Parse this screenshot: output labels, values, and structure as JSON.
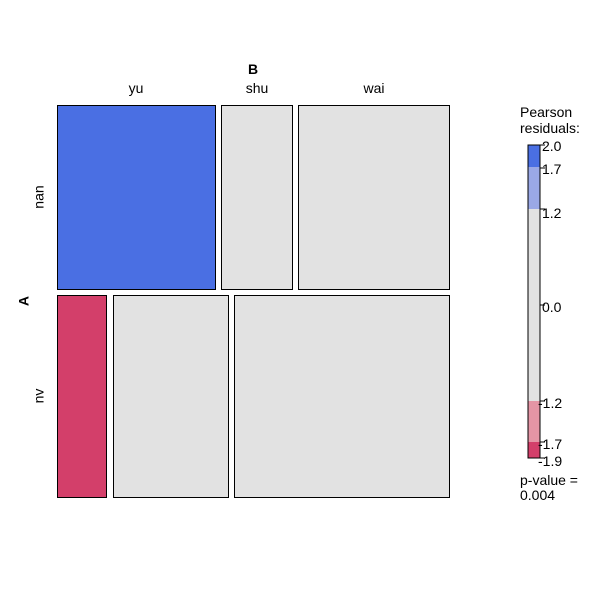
{
  "chart_data": {
    "type": "mosaic",
    "col_variable": "B",
    "row_variable": "A",
    "col_categories": [
      "yu",
      "shu",
      "wai"
    ],
    "row_categories": [
      "nan",
      "nv"
    ],
    "cells": [
      {
        "row": "nan",
        "col": "yu",
        "residual_color": "#4a6fe3"
      },
      {
        "row": "nan",
        "col": "shu",
        "residual_color": "#e2e2e2"
      },
      {
        "row": "nan",
        "col": "wai",
        "residual_color": "#e2e2e2"
      },
      {
        "row": "nv",
        "col": "yu",
        "residual_color": "#d33f6a"
      },
      {
        "row": "nv",
        "col": "shu",
        "residual_color": "#e2e2e2"
      },
      {
        "row": "nv",
        "col": "wai",
        "residual_color": "#e2e2e2"
      }
    ],
    "legend": {
      "title_line1": "Pearson",
      "title_line2": "residuals:",
      "ticks": [
        "2.0",
        "1.7",
        "1.2",
        "0.0",
        "-1.2",
        "-1.7",
        "-1.9"
      ],
      "colors": {
        "pos_strong": "#4a6fe3",
        "pos_mid": "#9aa8e6",
        "neutral": "#e2e2e2",
        "neg_mid": "#e495a5",
        "neg_strong": "#d33f6a"
      },
      "pvalue_line1": "p-value =",
      "pvalue_line2": "0.004"
    }
  }
}
